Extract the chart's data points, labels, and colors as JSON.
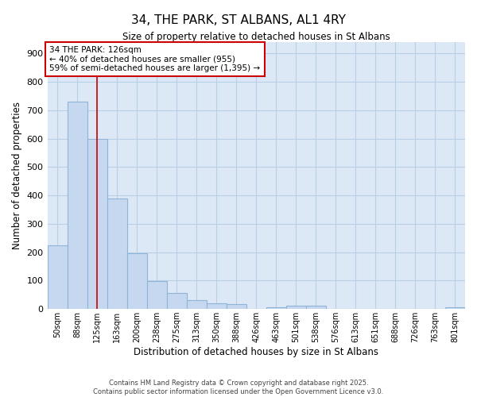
{
  "title": "34, THE PARK, ST ALBANS, AL1 4RY",
  "subtitle": "Size of property relative to detached houses in St Albans",
  "xlabel": "Distribution of detached houses by size in St Albans",
  "ylabel": "Number of detached properties",
  "categories": [
    "50sqm",
    "88sqm",
    "125sqm",
    "163sqm",
    "200sqm",
    "238sqm",
    "275sqm",
    "313sqm",
    "350sqm",
    "388sqm",
    "426sqm",
    "463sqm",
    "501sqm",
    "538sqm",
    "576sqm",
    "613sqm",
    "651sqm",
    "688sqm",
    "726sqm",
    "763sqm",
    "801sqm"
  ],
  "values": [
    225,
    730,
    600,
    390,
    195,
    97,
    55,
    32,
    20,
    18,
    0,
    5,
    12,
    12,
    0,
    0,
    0,
    0,
    0,
    0,
    5
  ],
  "bar_color": "#c5d8f0",
  "bar_edgecolor": "#90b4d8",
  "redline_x": 2.5,
  "annotation_title": "34 THE PARK: 126sqm",
  "annotation_line1": "← 40% of detached houses are smaller (955)",
  "annotation_line2": "59% of semi-detached houses are larger (1,395) →",
  "annotation_box_color": "#ffffff",
  "annotation_box_edgecolor": "#cc0000",
  "redline_color": "#cc0000",
  "ylim": [
    0,
    940
  ],
  "yticks": [
    0,
    100,
    200,
    300,
    400,
    500,
    600,
    700,
    800,
    900
  ],
  "grid_color": "#b8cfe8",
  "background_color": "#dce8f5",
  "footer_line1": "Contains HM Land Registry data © Crown copyright and database right 2025.",
  "footer_line2": "Contains public sector information licensed under the Open Government Licence v3.0."
}
